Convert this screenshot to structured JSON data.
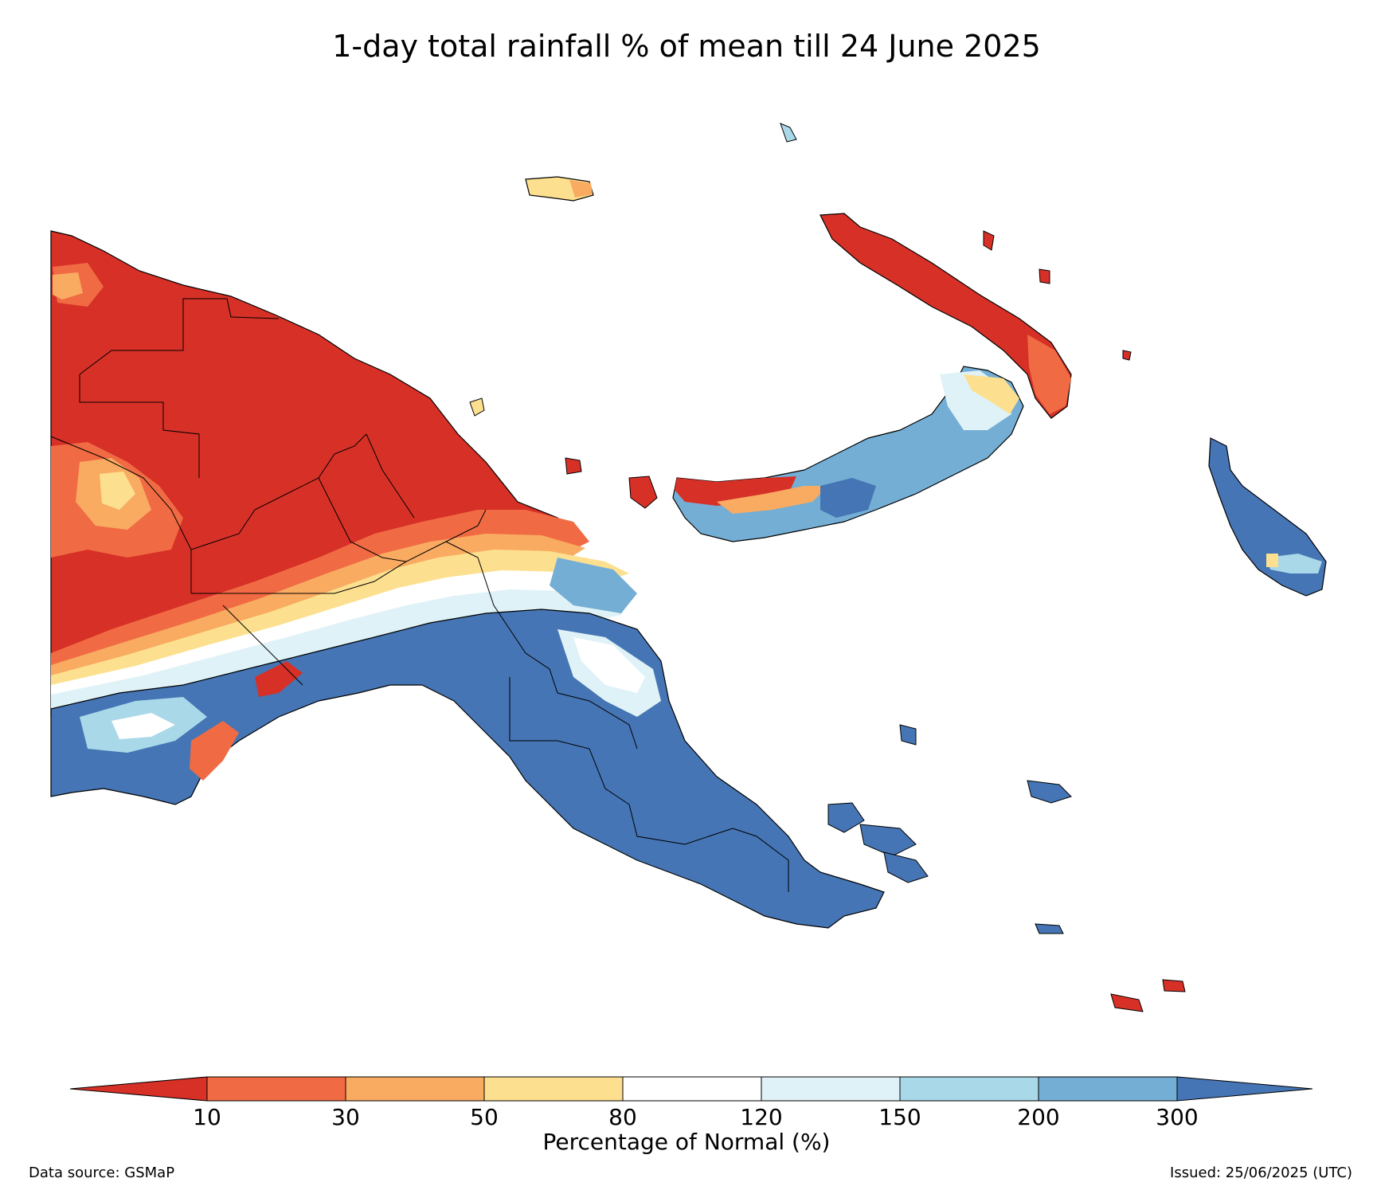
{
  "title": "1-day total rainfall % of mean till 24 June 2025",
  "legend": {
    "label": "Percentage of Normal (%)",
    "ticks": [
      "10",
      "30",
      "50",
      "80",
      "120",
      "150",
      "200",
      "300"
    ],
    "colors": {
      "lt10": "#d73027",
      "c10_30": "#f06b43",
      "c30_50": "#f9ab62",
      "c50_80": "#fde08f",
      "c80_120": "#ffffff",
      "c120_150": "#dff2f7",
      "c150_200": "#a9d8e8",
      "c200_300": "#74aed4",
      "gt300": "#4575b4"
    }
  },
  "footer": {
    "source": "Data source: GSMaP",
    "issued": "Issued: 25/06/2025 (UTC)"
  }
}
